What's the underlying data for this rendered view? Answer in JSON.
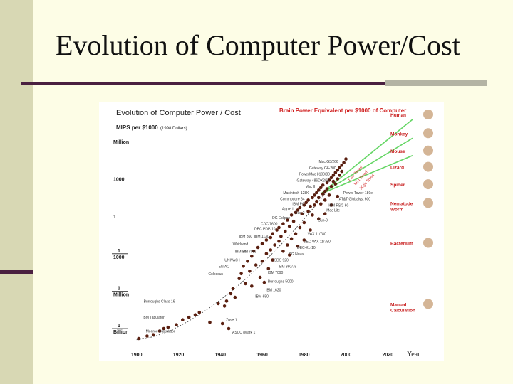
{
  "slide": {
    "title": "Evolution of Computer Power/Cost"
  },
  "chart_data": {
    "type": "scatter",
    "title": "Evolution of Computer Power / Cost",
    "ylabel": "MIPS per $1000",
    "ylabel_note": "(1998 Dollars)",
    "xlabel": "Year",
    "right_title": "Brain Power Equivalent per $1000 of Computer",
    "y_scale": "log",
    "x_ticks": [
      1900,
      1920,
      1940,
      1960,
      1980,
      2000,
      2020
    ],
    "y_ticks": [
      {
        "label": "Million",
        "value": 1000000
      },
      {
        "label": "1000",
        "value": 1000
      },
      {
        "label": "1",
        "value": 1
      },
      {
        "label": "1/1000",
        "value": 0.001,
        "num": "1",
        "den": "1000"
      },
      {
        "label": "1/Million",
        "value": 1e-06,
        "num": "1",
        "den": "Million"
      },
      {
        "label": "1/Billion",
        "value": 1e-09,
        "num": "1",
        "den": "Billion"
      }
    ],
    "xlim": [
      1895,
      2025
    ],
    "ylim_log10": [
      -10.2,
      6.8
    ],
    "organisms": [
      {
        "name": "Human",
        "log_mips": 8
      },
      {
        "name": "Monkey",
        "log_mips": 6.5
      },
      {
        "name": "Mouse",
        "log_mips": 5.1
      },
      {
        "name": "Lizard",
        "log_mips": 3.8
      },
      {
        "name": "Spider",
        "log_mips": 2.4
      },
      {
        "name": "Nematode Worm",
        "log_mips": 0.9
      },
      {
        "name": "Bacterium",
        "log_mips": -2.3
      },
      {
        "name": "Manual Calculation",
        "log_mips": -7.2
      }
    ],
    "trend_labels": [
      "Low Trend",
      "Mid Trend",
      "High Trend"
    ],
    "machines": [
      {
        "label": "Mac G3/266",
        "x": 1998,
        "y": 4.4
      },
      {
        "label": "Gateway G6-200",
        "x": 1997,
        "y": 3.9
      },
      {
        "label": "PowerMac 8100/80",
        "x": 1994,
        "y": 3.4
      },
      {
        "label": "Gateway-486DX2/66",
        "x": 1994,
        "y": 2.9
      },
      {
        "label": "Mac II",
        "x": 1987,
        "y": 2.4
      },
      {
        "label": "Macintosh-128K",
        "x": 1984,
        "y": 1.9
      },
      {
        "label": "Commodore 64",
        "x": 1982,
        "y": 1.4
      },
      {
        "label": "IBM PC",
        "x": 1982,
        "y": 1.0
      },
      {
        "label": "Apple II",
        "x": 1977,
        "y": 0.6
      },
      {
        "label": "Sun-2",
        "x": 1982,
        "y": 0.3
      },
      {
        "label": "DG Eclipse",
        "x": 1975,
        "y": -0.1
      },
      {
        "label": "CDC 7600",
        "x": 1969,
        "y": -0.6
      },
      {
        "label": "DEC PDP-10",
        "x": 1968,
        "y": -1.0
      },
      {
        "label": "IBM 7090",
        "x": 1959,
        "y": -2.8
      },
      {
        "label": "IBM 1130",
        "x": 1965,
        "y": -1.6
      },
      {
        "label": "IBM 360",
        "x": 1957,
        "y": -1.6
      },
      {
        "label": "Whirlwind",
        "x": 1955,
        "y": -2.2
      },
      {
        "label": "IBM 704",
        "x": 1955,
        "y": -2.8
      },
      {
        "label": "UNIVAC I",
        "x": 1951,
        "y": -3.5
      },
      {
        "label": "ENIAC",
        "x": 1946,
        "y": -4.0
      },
      {
        "label": "Colossus",
        "x": 1943,
        "y": -4.6
      },
      {
        "label": "Power Tower 180e",
        "x": 1997,
        "y": 1.9
      },
      {
        "label": "AT&T Globalyst 600",
        "x": 1995,
        "y": 1.4
      },
      {
        "label": "IBM PS/2 60",
        "x": 1990,
        "y": 0.9
      },
      {
        "label": "Mac Lite",
        "x": 1989,
        "y": 0.5
      },
      {
        "label": "Sun-3",
        "x": 1985,
        "y": -0.3
      },
      {
        "label": "VAX 11/780",
        "x": 1980,
        "y": -1.4
      },
      {
        "label": "DEC VAX 11/750",
        "x": 1978,
        "y": -2.0
      },
      {
        "label": "DEC-KL-10",
        "x": 1975,
        "y": -2.5
      },
      {
        "label": "DG Nova",
        "x": 1971,
        "y": -3.0
      },
      {
        "label": "SDS 920",
        "x": 1964,
        "y": -3.5
      },
      {
        "label": "IBM 360/75",
        "x": 1966,
        "y": -4.0
      },
      {
        "label": "IBM 7090",
        "x": 1961,
        "y": -4.5
      },
      {
        "label": "Burroughs 5000",
        "x": 1961,
        "y": -5.2
      },
      {
        "label": "IBM 1620",
        "x": 1960,
        "y": -5.9
      },
      {
        "label": "IBM 650",
        "x": 1955,
        "y": -6.4
      },
      {
        "label": "Burroughs Class 16",
        "x": 1920,
        "y": -6.8
      },
      {
        "label": "IBM Tabulator",
        "x": 1915,
        "y": -8.1
      },
      {
        "label": "Monroe Calculator",
        "x": 1920,
        "y": -9.2
      },
      {
        "label": "Zuse 1",
        "x": 1941,
        "y": -8.3
      },
      {
        "label": "ASCC (Mark 1)",
        "x": 1944,
        "y": -9.3
      }
    ],
    "points": [
      [
        1901,
        -9.8
      ],
      [
        1905,
        -9.6
      ],
      [
        1908,
        -9.5
      ],
      [
        1911,
        -9.2
      ],
      [
        1913,
        -9.0
      ],
      [
        1915,
        -8.9
      ],
      [
        1919,
        -8.7
      ],
      [
        1922,
        -8.3
      ],
      [
        1925,
        -8.1
      ],
      [
        1928,
        -7.9
      ],
      [
        1930,
        -7.7
      ],
      [
        1935,
        -8.5
      ],
      [
        1939,
        -7.0
      ],
      [
        1941,
        -8.6
      ],
      [
        1942,
        -7.2
      ],
      [
        1943,
        -6.8
      ],
      [
        1944,
        -9.0
      ],
      [
        1945,
        -6.2
      ],
      [
        1946,
        -5.8
      ],
      [
        1947,
        -6.5
      ],
      [
        1949,
        -5.0
      ],
      [
        1950,
        -4.6
      ],
      [
        1951,
        -4.0
      ],
      [
        1952,
        -5.4
      ],
      [
        1953,
        -3.6
      ],
      [
        1954,
        -4.4
      ],
      [
        1955,
        -3.2
      ],
      [
        1955,
        -5.6
      ],
      [
        1956,
        -2.8
      ],
      [
        1957,
        -3.9
      ],
      [
        1958,
        -2.5
      ],
      [
        1959,
        -4.9
      ],
      [
        1960,
        -2.2
      ],
      [
        1960,
        -3.6
      ],
      [
        1961,
        -5.3
      ],
      [
        1962,
        -1.9
      ],
      [
        1962,
        -3.0
      ],
      [
        1963,
        -4.2
      ],
      [
        1964,
        -1.7
      ],
      [
        1964,
        -2.7
      ],
      [
        1965,
        -1.4
      ],
      [
        1965,
        -3.5
      ],
      [
        1966,
        -2.3
      ],
      [
        1967,
        -1.1
      ],
      [
        1968,
        -2.0
      ],
      [
        1968,
        -0.9
      ],
      [
        1969,
        -1.6
      ],
      [
        1970,
        -0.6
      ],
      [
        1970,
        -2.8
      ],
      [
        1971,
        -1.2
      ],
      [
        1972,
        -0.3
      ],
      [
        1972,
        -2.3
      ],
      [
        1973,
        -0.8
      ],
      [
        1974,
        0.1
      ],
      [
        1974,
        -1.8
      ],
      [
        1975,
        -0.4
      ],
      [
        1976,
        0.3
      ],
      [
        1976,
        -1.4
      ],
      [
        1977,
        0.5
      ],
      [
        1978,
        -0.9
      ],
      [
        1978,
        0.7
      ],
      [
        1979,
        0.2
      ],
      [
        1980,
        0.9
      ],
      [
        1980,
        -0.5
      ],
      [
        1981,
        1.1
      ],
      [
        1982,
        0.4
      ],
      [
        1982,
        1.3
      ],
      [
        1983,
        0.8
      ],
      [
        1984,
        1.5
      ],
      [
        1984,
        0.1
      ],
      [
        1985,
        1.7
      ],
      [
        1985,
        0.9
      ],
      [
        1986,
        1.2
      ],
      [
        1986,
        1.9
      ],
      [
        1987,
        1.5
      ],
      [
        1987,
        2.1
      ],
      [
        1988,
        1.0
      ],
      [
        1988,
        2.3
      ],
      [
        1989,
        1.8
      ],
      [
        1989,
        2.5
      ],
      [
        1990,
        2.0
      ],
      [
        1990,
        1.3
      ],
      [
        1991,
        2.7
      ],
      [
        1991,
        2.2
      ],
      [
        1992,
        2.9
      ],
      [
        1992,
        1.7
      ],
      [
        1993,
        3.1
      ],
      [
        1993,
        2.4
      ],
      [
        1994,
        3.3
      ],
      [
        1994,
        2.8
      ],
      [
        1995,
        3.5
      ],
      [
        1995,
        2.6
      ],
      [
        1996,
        3.7
      ],
      [
        1996,
        3.0
      ],
      [
        1997,
        3.9
      ],
      [
        1997,
        3.3
      ],
      [
        1998,
        4.1
      ],
      [
        1998,
        3.6
      ],
      [
        1999,
        4.3
      ],
      [
        2000,
        4.6
      ],
      [
        1996,
        1.6
      ],
      [
        1993,
        0.9
      ],
      [
        1990,
        0.2
      ],
      [
        1987,
        -0.2
      ],
      [
        1983,
        -1.1
      ],
      [
        1980,
        -1.9
      ],
      [
        1977,
        -2.4
      ],
      [
        1973,
        -3.1
      ]
    ]
  },
  "colors": {
    "background": "#fdfde6",
    "sidebar": "#d8d8b4",
    "accent": "#4a2040",
    "rule_grey": "#b4b4a4",
    "dot": "#5a1f10",
    "trend_line": "#4ccf4c",
    "red_text": "#d02020"
  }
}
